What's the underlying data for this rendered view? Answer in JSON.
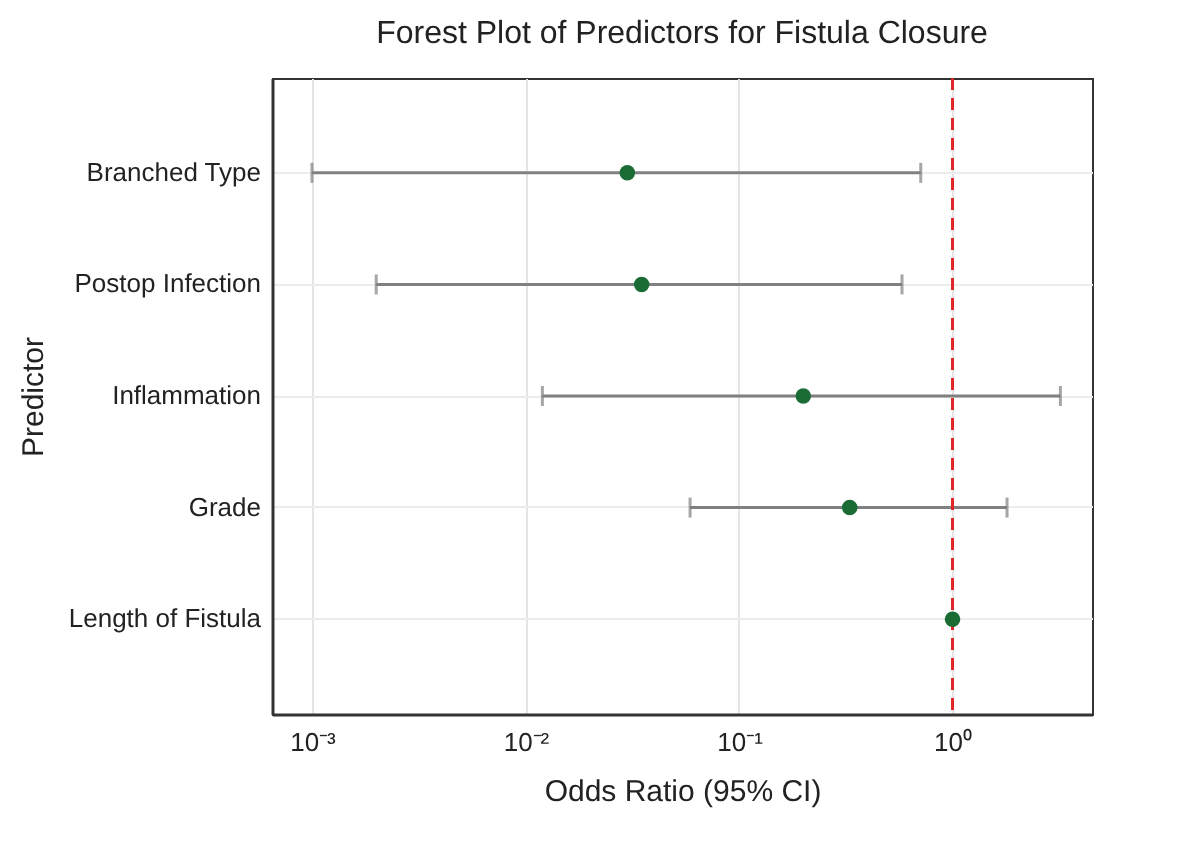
{
  "chart_data": {
    "type": "scatter",
    "orientation": "horizontal",
    "title": "Forest Plot of Predictors for Fistula Closure",
    "xlabel": "Odds Ratio (95% CI)",
    "ylabel": "Predictor",
    "categories": [
      "Branched Type",
      "Postop Infection",
      "Inflammation",
      "Grade",
      "Length of Fistula"
    ],
    "series": [
      {
        "color": "#1b6b35",
        "values": [
          0.03,
          0.035,
          0.2,
          0.33,
          1.0
        ],
        "errors": [
          [
            0.001,
            0.71
          ],
          [
            0.002,
            0.58
          ],
          [
            0.012,
            3.2
          ],
          [
            0.059,
            1.8
          ],
          null
        ]
      }
    ],
    "log": "x",
    "xlim": [
      0.00065,
      4.5
    ],
    "xticks": [
      {
        "value": 0.001,
        "label": "10⁻³"
      },
      {
        "value": 0.01,
        "label": "10⁻²"
      },
      {
        "value": 0.1,
        "label": "10⁻¹"
      },
      {
        "value": 1,
        "label": "10⁰"
      }
    ],
    "ref_lines": [
      {
        "axis": "x",
        "value": 1,
        "color": "#e0262b",
        "line_style": "dashed"
      }
    ],
    "grid": true,
    "marker": "circle"
  }
}
